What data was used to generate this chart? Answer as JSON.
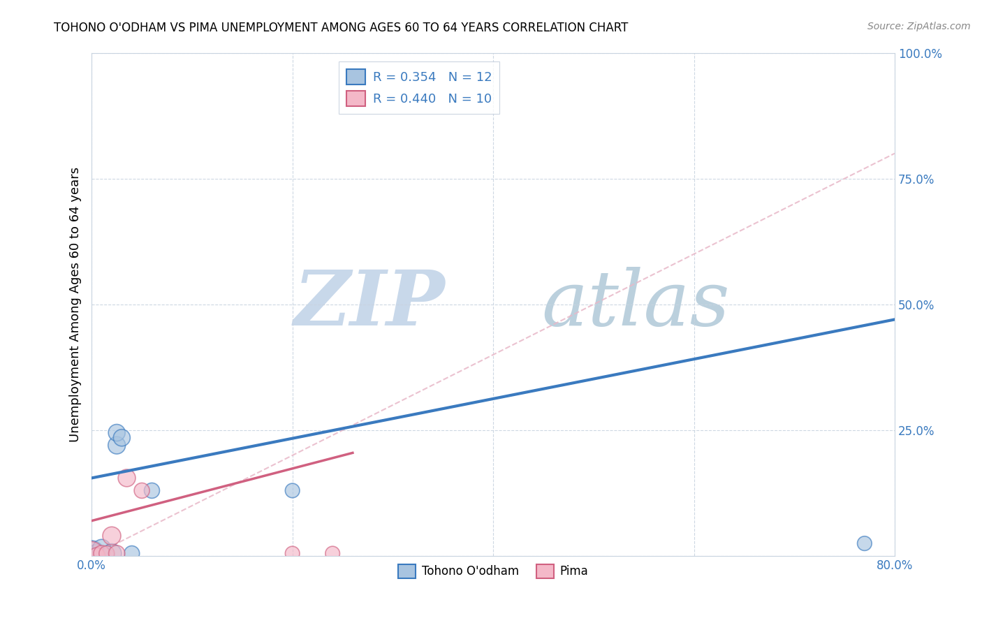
{
  "title": "TOHONO O'ODHAM VS PIMA UNEMPLOYMENT AMONG AGES 60 TO 64 YEARS CORRELATION CHART",
  "source": "Source: ZipAtlas.com",
  "ylabel": "Unemployment Among Ages 60 to 64 years",
  "legend_label1": "Tohono O'odham",
  "legend_label2": "Pima",
  "R1": 0.354,
  "N1": 12,
  "R2": 0.44,
  "N2": 10,
  "xlim": [
    0.0,
    0.8
  ],
  "ylim": [
    0.0,
    1.0
  ],
  "xticks": [
    0.0,
    0.2,
    0.4,
    0.6,
    0.8
  ],
  "yticks": [
    0.0,
    0.25,
    0.5,
    0.75,
    1.0
  ],
  "xticklabels_show": [
    "0.0%",
    "",
    "",
    "",
    "80.0%"
  ],
  "yticklabels_show": [
    "",
    "25.0%",
    "50.0%",
    "75.0%",
    "100.0%"
  ],
  "color_blue": "#a8c4e0",
  "color_blue_line": "#3a7abf",
  "color_pink": "#f4b8c8",
  "color_pink_line": "#d06080",
  "color_dashed": "#e8b8c8",
  "scatter_blue_x": [
    0.0,
    0.005,
    0.01,
    0.015,
    0.02,
    0.025,
    0.025,
    0.03,
    0.04,
    0.06,
    0.77,
    0.2
  ],
  "scatter_blue_y": [
    0.005,
    0.005,
    0.015,
    0.0,
    0.005,
    0.22,
    0.245,
    0.235,
    0.005,
    0.13,
    0.025,
    0.13
  ],
  "scatter_blue_sizes": [
    700,
    350,
    350,
    250,
    400,
    320,
    300,
    300,
    250,
    250,
    220,
    220
  ],
  "scatter_pink_x": [
    0.0,
    0.005,
    0.01,
    0.015,
    0.02,
    0.025,
    0.035,
    0.05,
    0.2,
    0.24
  ],
  "scatter_pink_y": [
    0.005,
    0.0,
    0.005,
    0.005,
    0.04,
    0.005,
    0.155,
    0.13,
    0.005,
    0.005
  ],
  "scatter_pink_sizes": [
    600,
    300,
    280,
    250,
    350,
    280,
    320,
    250,
    220,
    220
  ],
  "trend_blue_x0": 0.0,
  "trend_blue_y0": 0.155,
  "trend_blue_x1": 0.8,
  "trend_blue_y1": 0.47,
  "trend_pink_x0": 0.0,
  "trend_pink_y0": 0.07,
  "trend_pink_x1": 0.26,
  "trend_pink_y1": 0.205,
  "trend_dashed_x0": 0.0,
  "trend_dashed_y0": 0.0,
  "trend_dashed_x1": 0.8,
  "trend_dashed_y1": 0.8
}
